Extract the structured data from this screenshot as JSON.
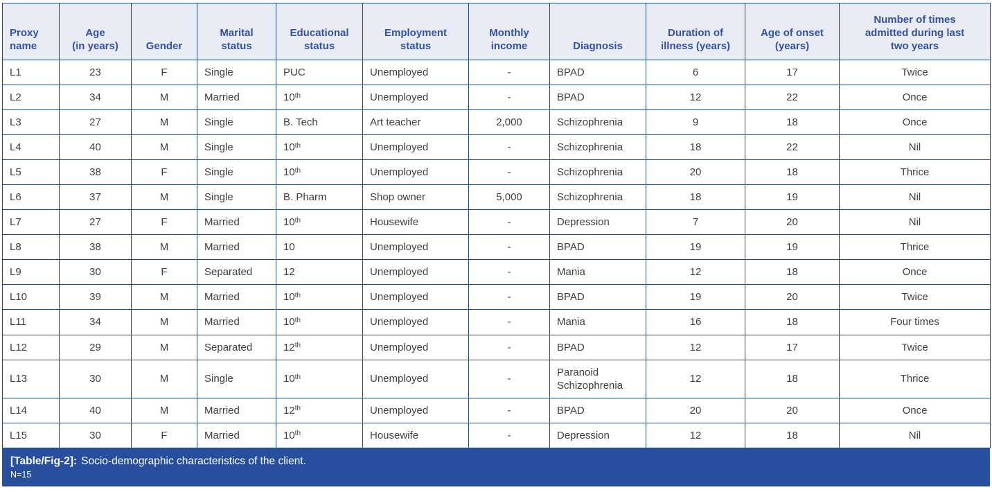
{
  "table": {
    "columns": [
      {
        "label": "Proxy\nname",
        "header_align": "left",
        "body_align": "left"
      },
      {
        "label": "Age\n(in years)",
        "header_align": "center",
        "body_align": "center"
      },
      {
        "label": "Gender",
        "header_align": "center",
        "body_align": "center"
      },
      {
        "label": "Marital\nstatus",
        "header_align": "center",
        "body_align": "left"
      },
      {
        "label": "Educational\nstatus",
        "header_align": "center",
        "body_align": "left"
      },
      {
        "label": "Employment\nstatus",
        "header_align": "center",
        "body_align": "left"
      },
      {
        "label": "Monthly\nincome",
        "header_align": "center",
        "body_align": "center"
      },
      {
        "label": "Diagnosis",
        "header_align": "center",
        "body_align": "left"
      },
      {
        "label": "Duration of\nillness (years)",
        "header_align": "center",
        "body_align": "center"
      },
      {
        "label": "Age of onset\n(years)",
        "header_align": "center",
        "body_align": "center"
      },
      {
        "label": "Number of times\nadmitted during last\ntwo years",
        "header_align": "center",
        "body_align": "center"
      }
    ],
    "rows": [
      [
        "L1",
        "23",
        "F",
        "Single",
        "PUC",
        "Unemployed",
        "-",
        "BPAD",
        "6",
        "17",
        "Twice"
      ],
      [
        "L2",
        "34",
        "M",
        "Married",
        {
          "text": "10",
          "sup": "th"
        },
        "Unemployed",
        "-",
        "BPAD",
        "12",
        "22",
        "Once"
      ],
      [
        "L3",
        "27",
        "M",
        "Single",
        "B. Tech",
        "Art teacher",
        "2,000",
        "Schizophrenia",
        "9",
        "18",
        "Once"
      ],
      [
        "L4",
        "40",
        "M",
        "Single",
        {
          "text": "10",
          "sup": "th"
        },
        "Unemployed",
        "-",
        "Schizophrenia",
        "18",
        "22",
        "Nil"
      ],
      [
        "L5",
        "38",
        "F",
        "Single",
        {
          "text": "10",
          "sup": "th"
        },
        "Unemployed",
        "-",
        "Schizophrenia",
        "20",
        "18",
        "Thrice"
      ],
      [
        "L6",
        "37",
        "M",
        "Single",
        "B. Pharm",
        "Shop owner",
        "5,000",
        "Schizophrenia",
        "18",
        "19",
        "Nil"
      ],
      [
        "L7",
        "27",
        "F",
        "Married",
        {
          "text": "10",
          "sup": "th"
        },
        "Housewife",
        "-",
        "Depression",
        "7",
        "20",
        "Nil"
      ],
      [
        "L8",
        "38",
        "M",
        "Married",
        "10",
        "Unemployed",
        "-",
        "BPAD",
        "19",
        "19",
        "Thrice"
      ],
      [
        "L9",
        "30",
        "F",
        "Separated",
        "12",
        "Unemployed",
        "-",
        "Mania",
        "12",
        "18",
        "Once"
      ],
      [
        "L10",
        "39",
        "M",
        "Married",
        {
          "text": "10",
          "sup": "th"
        },
        "Unemployed",
        "-",
        "BPAD",
        "19",
        "20",
        "Twice"
      ],
      [
        "L11",
        "34",
        "M",
        "Married",
        {
          "text": "10",
          "sup": "th"
        },
        "Unemployed",
        "-",
        "Mania",
        "16",
        "18",
        "Four times"
      ],
      [
        "L12",
        "29",
        "M",
        "Separated",
        {
          "text": "12",
          "sup": "th"
        },
        "Unemployed",
        "-",
        "BPAD",
        "12",
        "17",
        "Twice"
      ],
      [
        "L13",
        "30",
        "M",
        "Single",
        {
          "text": "10",
          "sup": "th"
        },
        "Unemployed",
        "-",
        "Paranoid Schizophrenia",
        "12",
        "18",
        "Thrice"
      ],
      [
        "L14",
        "40",
        "M",
        "Married",
        {
          "text": "12",
          "sup": "th"
        },
        "Unemployed",
        "-",
        "BPAD",
        "20",
        "20",
        "Once"
      ],
      [
        "L15",
        "30",
        "F",
        "Married",
        {
          "text": "10",
          "sup": "th"
        },
        "Housewife",
        "-",
        "Depression",
        "12",
        "18",
        "Nil"
      ]
    ]
  },
  "caption": {
    "tag": "[Table/Fig-2]:",
    "text": "Socio-demographic characteristics of the client.",
    "note": "N=15"
  },
  "colors": {
    "header_bg": "#e9ebf5",
    "header_text": "#3452a4",
    "border": "#24476e",
    "body_text": "#3d3d3d",
    "caption_bg": "#274f9d",
    "caption_text": "#ffffff"
  }
}
